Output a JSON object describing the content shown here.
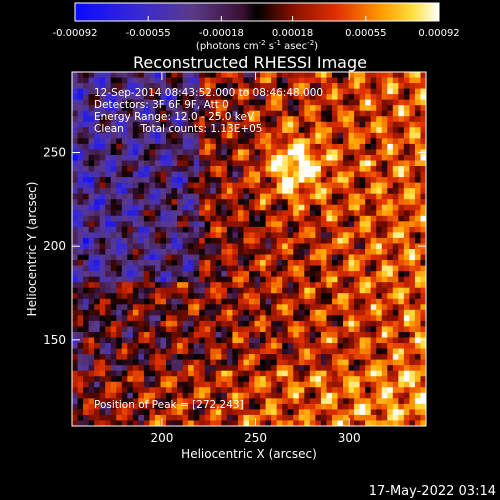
{
  "chart_data": {
    "type": "heatmap",
    "title": "Reconstructed RHESSI Image",
    "xlabel": "Heliocentric X (arcsec)",
    "ylabel": "Heliocentric Y (arcsec)",
    "x_ticks": [
      "200",
      "250",
      "300"
    ],
    "y_ticks": [
      "150",
      "200",
      "250"
    ],
    "xlim": [
      152,
      341
    ],
    "ylim": [
      104,
      293
    ],
    "grid": false,
    "colorbar": {
      "ticks": [
        "-0.00092",
        "-0.00055",
        "-0.00018",
        "0.00018",
        "0.00055",
        "0.00092"
      ],
      "range": [
        -0.00092,
        0.00092
      ],
      "units_prefix": "(photons cm",
      "units_exp1": "-2",
      "units_mid1": " s",
      "units_exp2": "-1",
      "units_mid2": " asec",
      "units_exp3": "-2",
      "units_suffix": ")"
    },
    "annotations": [
      "12-Sep-2014 08:43:52.000 to 08:46:48.000",
      "Detectors: 3F 6F 9F, Att 0",
      "Energy Range: 12.0 - 25.0 keV",
      "Clean     Total counts: 1.13E+05"
    ],
    "peak_label": "Position of Peak = [272,243]",
    "peak": [
      272,
      243
    ],
    "grid_size": [
      64,
      64
    ]
  },
  "footer": {
    "timestamp": "17-May-2022 03:14"
  }
}
